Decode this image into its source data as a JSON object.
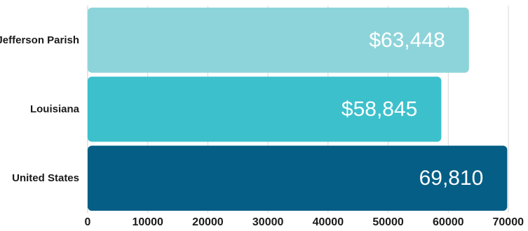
{
  "chart_data": {
    "type": "bar",
    "orientation": "horizontal",
    "title": "",
    "xlabel": "",
    "ylabel": "",
    "categories": [
      "Jefferson Parish",
      "Louisiana",
      "United States"
    ],
    "values": [
      63448,
      58845,
      69810
    ],
    "data_labels": [
      "$63,448",
      "$58,845",
      "69,810"
    ],
    "colors": [
      "#8dd4da",
      "#3cc0cc",
      "#045e86"
    ],
    "xlim": [
      0,
      70000
    ],
    "x_ticks": [
      0,
      10000,
      20000,
      30000,
      40000,
      50000,
      60000,
      70000
    ],
    "x_tick_labels": [
      "0",
      "10000",
      "20000",
      "30000",
      "40000",
      "50000",
      "60000",
      "70000"
    ],
    "grid": true,
    "legend": "none"
  }
}
